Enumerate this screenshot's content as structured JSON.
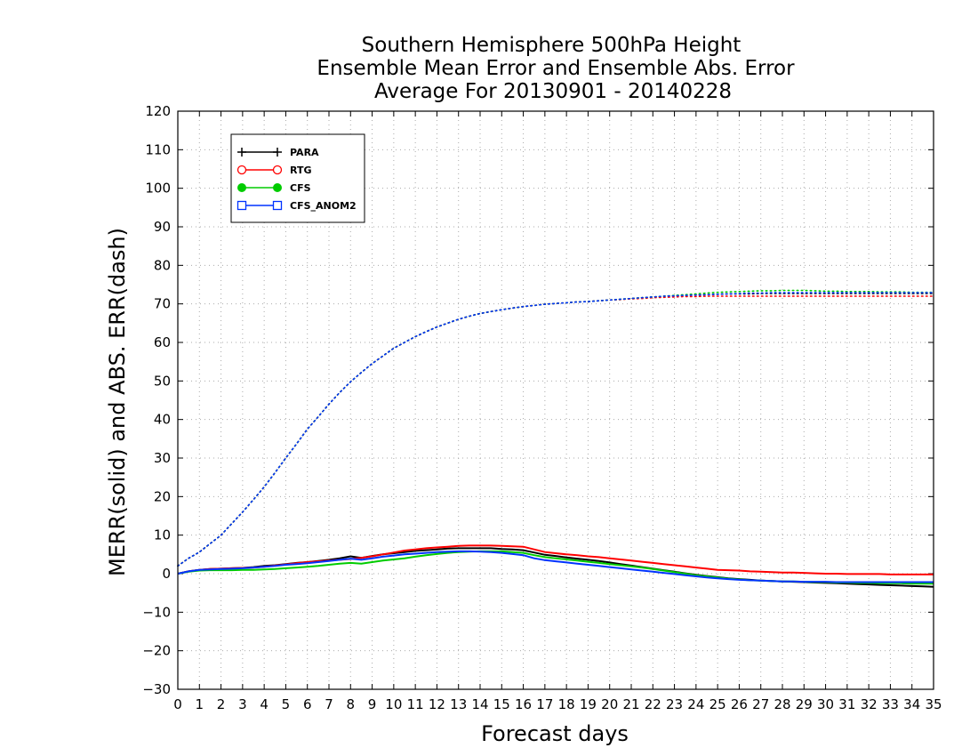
{
  "chart_data": {
    "type": "line",
    "title_lines": [
      "Southern Hemisphere 500hPa Height",
      "Ensemble Mean Error and Ensemble Abs. Error",
      "Average For 20130901 - 20140228"
    ],
    "xlabel": "Forecast days",
    "ylabel": "MERR(solid) and ABS. ERR(dash)",
    "xlim": [
      0,
      35
    ],
    "ylim": [
      -30,
      120
    ],
    "x_ticks": [
      0,
      1,
      2,
      3,
      4,
      5,
      6,
      7,
      8,
      9,
      10,
      11,
      12,
      13,
      14,
      15,
      16,
      17,
      18,
      19,
      20,
      21,
      22,
      23,
      24,
      25,
      26,
      27,
      28,
      29,
      30,
      31,
      32,
      33,
      34,
      35
    ],
    "y_ticks": [
      -30,
      -20,
      -10,
      0,
      10,
      20,
      30,
      40,
      50,
      60,
      70,
      80,
      90,
      100,
      110,
      120
    ],
    "grid": true,
    "legend_position": "top-left",
    "x": [
      0,
      0.5,
      1,
      1.5,
      2,
      2.5,
      3,
      3.5,
      4,
      4.5,
      5,
      5.5,
      6,
      6.5,
      7,
      7.5,
      8,
      8.5,
      9,
      9.5,
      10,
      10.5,
      11,
      11.5,
      12,
      12.5,
      13,
      13.5,
      14,
      14.5,
      15,
      15.5,
      16,
      16.5,
      17,
      17.5,
      18,
      18.5,
      19,
      19.5,
      20,
      20.5,
      21,
      21.5,
      22,
      22.5,
      23,
      23.5,
      24,
      24.5,
      25,
      25.5,
      26,
      26.5,
      27,
      27.5,
      28,
      28.5,
      29,
      29.5,
      30,
      30.5,
      31,
      31.5,
      32,
      32.5,
      33,
      33.5,
      34,
      34.5,
      35
    ],
    "series": [
      {
        "name": "PARA",
        "color": "#000000",
        "marker": "plus",
        "merr": [
          0.0,
          0.6,
          1.0,
          1.2,
          1.3,
          1.4,
          1.5,
          1.7,
          2.0,
          2.2,
          2.5,
          2.8,
          3.0,
          3.3,
          3.6,
          4.0,
          4.5,
          4.1,
          4.6,
          5.0,
          5.3,
          5.6,
          5.9,
          6.1,
          6.3,
          6.5,
          6.6,
          6.6,
          6.6,
          6.6,
          6.4,
          6.3,
          6.1,
          5.5,
          4.9,
          4.6,
          4.2,
          3.9,
          3.6,
          3.3,
          2.9,
          2.5,
          2.1,
          1.7,
          1.3,
          0.9,
          0.5,
          0.1,
          -0.3,
          -0.6,
          -0.9,
          -1.2,
          -1.4,
          -1.6,
          -1.8,
          -1.9,
          -2.0,
          -2.1,
          -2.2,
          -2.3,
          -2.4,
          -2.5,
          -2.6,
          -2.7,
          -2.8,
          -2.9,
          -3.0,
          -3.1,
          -3.2,
          -3.3,
          -3.4
        ],
        "abs": [
          2.0,
          4.0,
          5.6,
          7.8,
          10.0,
          13.0,
          16.0,
          19.2,
          22.5,
          26.2,
          30.0,
          33.7,
          37.5,
          40.7,
          44.0,
          47.0,
          49.8,
          52.2,
          54.5,
          56.5,
          58.5,
          60.0,
          61.5,
          62.8,
          64.0,
          65.0,
          66.0,
          66.8,
          67.5,
          68.0,
          68.5,
          68.9,
          69.3,
          69.6,
          69.9,
          70.1,
          70.3,
          70.5,
          70.6,
          70.8,
          71.0,
          71.2,
          71.4,
          71.6,
          71.8,
          72.0,
          72.1,
          72.2,
          72.3,
          72.4,
          72.5,
          72.6,
          72.6,
          72.6,
          72.7,
          72.7,
          72.7,
          72.7,
          72.7,
          72.7,
          72.7,
          72.7,
          72.7,
          72.7,
          72.7,
          72.7,
          72.7,
          72.7,
          72.7,
          72.7,
          72.7
        ]
      },
      {
        "name": "RTG",
        "color": "#ff0000",
        "marker": "open-circle",
        "merr": [
          0.0,
          0.6,
          1.0,
          1.2,
          1.3,
          1.4,
          1.5,
          1.6,
          1.8,
          2.1,
          2.4,
          2.7,
          3.0,
          3.2,
          3.4,
          3.6,
          3.8,
          4.1,
          4.5,
          5.0,
          5.5,
          6.0,
          6.3,
          6.6,
          6.8,
          7.0,
          7.2,
          7.3,
          7.3,
          7.3,
          7.2,
          7.1,
          7.0,
          6.3,
          5.6,
          5.3,
          5.0,
          4.8,
          4.5,
          4.3,
          4.0,
          3.7,
          3.4,
          3.1,
          2.8,
          2.5,
          2.2,
          1.9,
          1.6,
          1.3,
          1.0,
          0.9,
          0.8,
          0.6,
          0.5,
          0.4,
          0.3,
          0.3,
          0.2,
          0.1,
          0.0,
          0.0,
          -0.1,
          -0.1,
          -0.1,
          -0.1,
          -0.2,
          -0.2,
          -0.2,
          -0.2,
          -0.2
        ],
        "abs": [
          2.0,
          4.0,
          5.6,
          7.8,
          10.0,
          13.0,
          16.0,
          19.2,
          22.5,
          26.2,
          30.0,
          33.7,
          37.5,
          40.7,
          44.0,
          47.0,
          49.8,
          52.2,
          54.5,
          56.5,
          58.5,
          60.0,
          61.5,
          62.8,
          64.0,
          65.0,
          66.0,
          66.8,
          67.5,
          68.0,
          68.5,
          68.9,
          69.3,
          69.6,
          69.9,
          70.1,
          70.3,
          70.5,
          70.6,
          70.8,
          71.0,
          71.1,
          71.3,
          71.4,
          71.6,
          71.7,
          71.8,
          71.9,
          71.9,
          72.0,
          72.0,
          72.0,
          72.0,
          72.0,
          72.0,
          72.0,
          72.0,
          72.0,
          72.0,
          72.0,
          72.0,
          72.0,
          72.0,
          72.0,
          72.0,
          72.0,
          72.0,
          72.0,
          72.0,
          72.0,
          72.0
        ]
      },
      {
        "name": "CFS",
        "color": "#00cc00",
        "marker": "filled-circle",
        "merr": [
          0.0,
          0.5,
          0.8,
          0.9,
          0.9,
          0.9,
          1.0,
          1.0,
          1.1,
          1.2,
          1.4,
          1.6,
          1.8,
          2.0,
          2.3,
          2.6,
          2.8,
          2.6,
          3.0,
          3.4,
          3.7,
          4.0,
          4.4,
          4.8,
          5.1,
          5.4,
          5.6,
          5.7,
          5.8,
          5.8,
          5.8,
          5.6,
          5.4,
          4.8,
          4.3,
          4.0,
          3.7,
          3.4,
          3.1,
          2.8,
          2.5,
          2.2,
          1.9,
          1.6,
          1.2,
          0.8,
          0.4,
          0.0,
          -0.4,
          -0.7,
          -1.0,
          -1.3,
          -1.5,
          -1.7,
          -1.8,
          -1.9,
          -2.0,
          -2.0,
          -2.1,
          -2.2,
          -2.2,
          -2.3,
          -2.3,
          -2.4,
          -2.4,
          -2.5,
          -2.5,
          -2.5,
          -2.6,
          -2.6,
          -2.6
        ],
        "abs": [
          2.0,
          4.0,
          5.6,
          7.8,
          10.0,
          13.0,
          16.0,
          19.2,
          22.5,
          26.2,
          30.0,
          33.7,
          37.5,
          40.7,
          44.0,
          47.0,
          49.8,
          52.2,
          54.5,
          56.5,
          58.5,
          60.0,
          61.5,
          62.8,
          64.0,
          65.0,
          66.0,
          66.8,
          67.5,
          68.0,
          68.5,
          68.9,
          69.3,
          69.6,
          69.9,
          70.1,
          70.3,
          70.5,
          70.6,
          70.8,
          71.0,
          71.2,
          71.4,
          71.6,
          71.8,
          72.0,
          72.2,
          72.4,
          72.6,
          72.8,
          73.0,
          73.1,
          73.2,
          73.3,
          73.4,
          73.4,
          73.5,
          73.5,
          73.5,
          73.4,
          73.3,
          73.3,
          73.2,
          73.2,
          73.2,
          73.1,
          73.1,
          73.1,
          73.0,
          73.0,
          73.0
        ]
      },
      {
        "name": "CFS_ANOM2",
        "color": "#0033ff",
        "marker": "open-square",
        "merr": [
          0.0,
          0.6,
          1.0,
          1.1,
          1.2,
          1.3,
          1.4,
          1.6,
          1.8,
          2.0,
          2.3,
          2.5,
          2.7,
          3.0,
          3.3,
          3.6,
          3.9,
          3.6,
          4.0,
          4.4,
          4.7,
          5.0,
          5.2,
          5.4,
          5.6,
          5.7,
          5.8,
          5.8,
          5.7,
          5.6,
          5.4,
          5.1,
          4.8,
          4.0,
          3.5,
          3.2,
          2.9,
          2.6,
          2.3,
          2.0,
          1.7,
          1.4,
          1.1,
          0.8,
          0.5,
          0.2,
          -0.1,
          -0.4,
          -0.7,
          -1.0,
          -1.2,
          -1.4,
          -1.6,
          -1.7,
          -1.8,
          -1.9,
          -2.0,
          -2.0,
          -2.1,
          -2.1,
          -2.1,
          -2.2,
          -2.2,
          -2.2,
          -2.2,
          -2.2,
          -2.2,
          -2.2,
          -2.2,
          -2.2,
          -2.2
        ],
        "abs": [
          2.0,
          4.0,
          5.6,
          7.8,
          10.0,
          13.0,
          16.0,
          19.2,
          22.5,
          26.2,
          30.0,
          33.7,
          37.5,
          40.7,
          44.0,
          47.0,
          49.8,
          52.2,
          54.5,
          56.5,
          58.5,
          60.0,
          61.5,
          62.8,
          64.0,
          65.0,
          66.0,
          66.8,
          67.5,
          68.0,
          68.5,
          68.9,
          69.3,
          69.6,
          69.9,
          70.1,
          70.3,
          70.5,
          70.6,
          70.8,
          71.0,
          71.2,
          71.4,
          71.6,
          71.8,
          72.0,
          72.1,
          72.2,
          72.3,
          72.4,
          72.5,
          72.6,
          72.7,
          72.8,
          72.8,
          72.9,
          72.9,
          72.9,
          72.9,
          72.9,
          72.9,
          72.9,
          72.9,
          72.9,
          72.9,
          72.9,
          72.9,
          72.9,
          72.9,
          72.9,
          72.9
        ]
      }
    ]
  }
}
